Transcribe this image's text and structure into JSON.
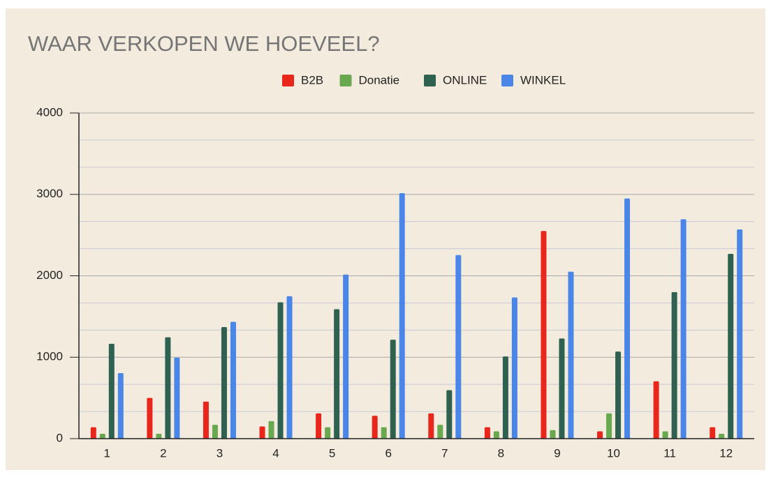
{
  "chart_data": {
    "type": "bar",
    "title": "WAAR VERKOPEN WE HOEVEEL?",
    "categories": [
      "1",
      "2",
      "3",
      "4",
      "5",
      "6",
      "7",
      "8",
      "9",
      "10",
      "11",
      "12"
    ],
    "series": [
      {
        "name": "B2B",
        "color": "#e8261b",
        "values": [
          140,
          500,
          455,
          150,
          310,
          280,
          310,
          140,
          2550,
          90,
          705,
          140
        ]
      },
      {
        "name": "Donatie",
        "color": "#6aa84f",
        "values": [
          60,
          60,
          170,
          215,
          140,
          140,
          170,
          90,
          105,
          310,
          90,
          60
        ]
      },
      {
        "name": "ONLINE",
        "color": "#2e6150",
        "values": [
          1165,
          1245,
          1370,
          1675,
          1590,
          1215,
          595,
          1010,
          1230,
          1070,
          1800,
          2270
        ]
      },
      {
        "name": "WINKEL",
        "color": "#4a86e8",
        "values": [
          805,
          995,
          1435,
          1750,
          2015,
          3015,
          2255,
          1735,
          2050,
          2950,
          2695,
          2570
        ]
      }
    ],
    "ylim": [
      0,
      4000
    ],
    "yticks": [
      0,
      1000,
      2000,
      3000,
      4000
    ],
    "grid": true,
    "minor_grid_count": 2,
    "legend": "top"
  }
}
